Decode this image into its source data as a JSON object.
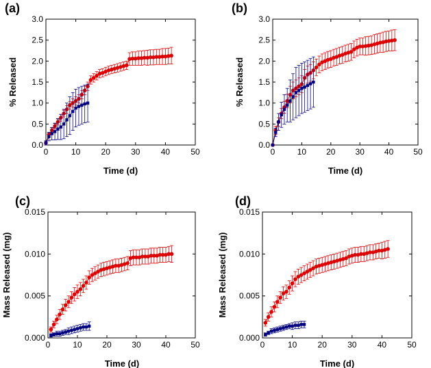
{
  "figure": {
    "series_colors": [
      "#dd0000",
      "#000080"
    ]
  },
  "chart_data": [
    {
      "panel": "(a)",
      "type": "scatter",
      "xlabel": "Time (d)",
      "ylabel": "% Released",
      "xlim": [
        0,
        50
      ],
      "ylim": [
        0,
        3.0
      ],
      "xticks": [
        0,
        10,
        20,
        30,
        40,
        50
      ],
      "yticks": [
        0,
        0.5,
        1.0,
        1.5,
        2.0,
        2.5,
        3.0
      ],
      "xtick_labels": [
        "0",
        "10",
        "20",
        "30",
        "40",
        "50"
      ],
      "ytick_labels": [
        "0.0",
        "0.5",
        "1.0",
        "1.5",
        "2.0",
        "2.5",
        "3.0"
      ],
      "series": [
        {
          "name": "red",
          "color": "#dd0000",
          "x": [
            0,
            1,
            2,
            3,
            4,
            5,
            6,
            7,
            8,
            9,
            10,
            11,
            12,
            13,
            14,
            15,
            16,
            17,
            18,
            19,
            20,
            21,
            22,
            23,
            24,
            25,
            26,
            27,
            28,
            29,
            30,
            31,
            32,
            33,
            34,
            35,
            36,
            37,
            38,
            39,
            40,
            41,
            42
          ],
          "y": [
            0.05,
            0.25,
            0.35,
            0.45,
            0.55,
            0.65,
            0.75,
            0.85,
            0.95,
            1.0,
            1.05,
            1.1,
            1.2,
            1.3,
            1.4,
            1.55,
            1.6,
            1.65,
            1.7,
            1.72,
            1.75,
            1.78,
            1.8,
            1.82,
            1.84,
            1.86,
            1.88,
            1.9,
            2.05,
            2.06,
            2.06,
            2.07,
            2.07,
            2.08,
            2.08,
            2.09,
            2.09,
            2.1,
            2.1,
            2.11,
            2.11,
            2.12,
            2.13
          ],
          "err": [
            0.05,
            0.05,
            0.06,
            0.06,
            0.07,
            0.08,
            0.08,
            0.09,
            0.09,
            0.1,
            0.1,
            0.1,
            0.1,
            0.1,
            0.1,
            0.1,
            0.1,
            0.1,
            0.1,
            0.1,
            0.1,
            0.1,
            0.1,
            0.1,
            0.1,
            0.1,
            0.1,
            0.1,
            0.15,
            0.16,
            0.16,
            0.17,
            0.17,
            0.17,
            0.18,
            0.18,
            0.18,
            0.18,
            0.18,
            0.19,
            0.19,
            0.19,
            0.2
          ]
        },
        {
          "name": "blue",
          "color": "#000080",
          "x": [
            0,
            1,
            2,
            3,
            4,
            5,
            6,
            7,
            8,
            9,
            10,
            11,
            12,
            13,
            14
          ],
          "y": [
            0.05,
            0.2,
            0.27,
            0.32,
            0.38,
            0.43,
            0.5,
            0.6,
            0.7,
            0.8,
            0.88,
            0.92,
            0.95,
            0.98,
            1.0
          ],
          "err": [
            0.05,
            0.1,
            0.15,
            0.2,
            0.25,
            0.3,
            0.35,
            0.4,
            0.45,
            0.45,
            0.45,
            0.45,
            0.45,
            0.45,
            0.45
          ]
        }
      ]
    },
    {
      "panel": "(b)",
      "type": "scatter",
      "xlabel": "Time (d)",
      "ylabel": "% Released",
      "xlim": [
        0,
        50
      ],
      "ylim": [
        0,
        3.0
      ],
      "xticks": [
        0,
        10,
        20,
        30,
        40,
        50
      ],
      "yticks": [
        0,
        0.5,
        1.0,
        1.5,
        2.0,
        2.5,
        3.0
      ],
      "xtick_labels": [
        "0",
        "10",
        "20",
        "30",
        "40",
        "50"
      ],
      "ytick_labels": [
        "0.0",
        "0.5",
        "1.0",
        "1.5",
        "2.0",
        "2.5",
        "3.0"
      ],
      "series": [
        {
          "name": "red",
          "color": "#dd0000",
          "x": [
            0,
            1,
            2,
            3,
            4,
            5,
            6,
            7,
            8,
            9,
            10,
            11,
            12,
            13,
            14,
            15,
            16,
            17,
            18,
            19,
            20,
            21,
            22,
            23,
            24,
            25,
            26,
            27,
            28,
            29,
            30,
            31,
            32,
            33,
            34,
            35,
            36,
            37,
            38,
            39,
            40,
            41,
            42
          ],
          "y": [
            0.0,
            0.35,
            0.55,
            0.75,
            0.9,
            1.05,
            1.2,
            1.3,
            1.35,
            1.4,
            1.45,
            1.6,
            1.68,
            1.72,
            1.78,
            1.85,
            1.92,
            1.97,
            2.0,
            2.03,
            2.05,
            2.08,
            2.1,
            2.13,
            2.15,
            2.18,
            2.2,
            2.22,
            2.28,
            2.32,
            2.35,
            2.35,
            2.36,
            2.37,
            2.38,
            2.4,
            2.42,
            2.44,
            2.45,
            2.47,
            2.48,
            2.49,
            2.5
          ],
          "err": [
            0.0,
            0.1,
            0.1,
            0.12,
            0.14,
            0.16,
            0.2,
            0.2,
            0.2,
            0.2,
            0.2,
            0.2,
            0.2,
            0.2,
            0.2,
            0.2,
            0.2,
            0.2,
            0.2,
            0.2,
            0.2,
            0.2,
            0.2,
            0.2,
            0.2,
            0.2,
            0.2,
            0.2,
            0.2,
            0.2,
            0.2,
            0.2,
            0.22,
            0.22,
            0.22,
            0.23,
            0.23,
            0.23,
            0.24,
            0.24,
            0.24,
            0.25,
            0.25
          ]
        },
        {
          "name": "blue",
          "color": "#000080",
          "x": [
            0,
            1,
            2,
            3,
            4,
            5,
            6,
            7,
            8,
            9,
            10,
            11,
            12,
            13,
            14
          ],
          "y": [
            0.0,
            0.3,
            0.55,
            0.72,
            0.85,
            0.95,
            1.05,
            1.15,
            1.25,
            1.3,
            1.35,
            1.38,
            1.42,
            1.46,
            1.5
          ],
          "err": [
            0.0,
            0.1,
            0.2,
            0.3,
            0.35,
            0.4,
            0.5,
            0.55,
            0.6,
            0.6,
            0.6,
            0.6,
            0.6,
            0.6,
            0.6
          ]
        }
      ]
    },
    {
      "panel": "(c)",
      "type": "scatter",
      "xlabel": "Time (d)",
      "ylabel": "Mass Released (mg)",
      "xlim": [
        0,
        50
      ],
      "ylim": [
        0,
        0.015
      ],
      "xticks": [
        0,
        10,
        20,
        30,
        40,
        50
      ],
      "yticks": [
        0,
        0.005,
        0.01,
        0.015
      ],
      "xtick_labels": [
        "0",
        "10",
        "20",
        "30",
        "40",
        "50"
      ],
      "ytick_labels": [
        "0.000",
        "0.005",
        "0.010",
        "0.015"
      ],
      "series": [
        {
          "name": "red",
          "color": "#dd0000",
          "x": [
            1,
            2,
            3,
            4,
            5,
            6,
            7,
            8,
            9,
            10,
            11,
            12,
            13,
            14,
            15,
            16,
            17,
            18,
            19,
            20,
            21,
            22,
            23,
            24,
            25,
            26,
            27,
            28,
            29,
            30,
            31,
            32,
            33,
            34,
            35,
            36,
            37,
            38,
            39,
            40,
            41,
            42
          ],
          "y": [
            0.001,
            0.0016,
            0.0022,
            0.0028,
            0.0034,
            0.0039,
            0.0043,
            0.0048,
            0.0052,
            0.0055,
            0.0058,
            0.0062,
            0.0066,
            0.0072,
            0.0075,
            0.0077,
            0.0079,
            0.0081,
            0.0082,
            0.0083,
            0.0084,
            0.0085,
            0.0086,
            0.0086,
            0.0087,
            0.0088,
            0.0089,
            0.0095,
            0.0096,
            0.0096,
            0.0096,
            0.0097,
            0.0097,
            0.0097,
            0.0098,
            0.0098,
            0.0098,
            0.0099,
            0.0099,
            0.0099,
            0.01,
            0.01
          ],
          "err": [
            0.0003,
            0.0004,
            0.0005,
            0.0006,
            0.0006,
            0.0007,
            0.0007,
            0.0007,
            0.0008,
            0.0008,
            0.0008,
            0.0008,
            0.0008,
            0.0008,
            0.0008,
            0.0008,
            0.0008,
            0.0008,
            0.0008,
            0.0008,
            0.0008,
            0.0008,
            0.0008,
            0.0008,
            0.0008,
            0.0008,
            0.0008,
            0.0009,
            0.0009,
            0.0009,
            0.0009,
            0.0009,
            0.0009,
            0.0009,
            0.0009,
            0.0009,
            0.0009,
            0.0009,
            0.0009,
            0.0009,
            0.0009,
            0.001
          ]
        },
        {
          "name": "blue",
          "color": "#000080",
          "x": [
            1,
            2,
            3,
            4,
            5,
            6,
            7,
            8,
            9,
            10,
            11,
            12,
            13,
            14
          ],
          "y": [
            0.0003,
            0.0004,
            0.0005,
            0.0005,
            0.0006,
            0.0007,
            0.0008,
            0.0009,
            0.001,
            0.0011,
            0.0012,
            0.0013,
            0.0013,
            0.0014
          ],
          "err": [
            0.0002,
            0.0002,
            0.0003,
            0.0003,
            0.0003,
            0.0003,
            0.0004,
            0.0004,
            0.0004,
            0.0004,
            0.0004,
            0.0004,
            0.0004,
            0.0005
          ]
        }
      ]
    },
    {
      "panel": "(d)",
      "type": "scatter",
      "xlabel": "Time (d)",
      "ylabel": "Mass Released (mg)",
      "xlim": [
        0,
        50
      ],
      "ylim": [
        0,
        0.015
      ],
      "xticks": [
        0,
        10,
        20,
        30,
        40,
        50
      ],
      "yticks": [
        0,
        0.005,
        0.01,
        0.015
      ],
      "xtick_labels": [
        "0",
        "10",
        "20",
        "30",
        "40",
        "50"
      ],
      "ytick_labels": [
        "0.000",
        "0.005",
        "0.010",
        "0.015"
      ],
      "series": [
        {
          "name": "red",
          "color": "#dd0000",
          "x": [
            1,
            2,
            3,
            4,
            5,
            6,
            7,
            8,
            9,
            10,
            11,
            12,
            13,
            14,
            15,
            16,
            17,
            18,
            19,
            20,
            21,
            22,
            23,
            24,
            25,
            26,
            27,
            28,
            29,
            30,
            31,
            32,
            33,
            34,
            35,
            36,
            37,
            38,
            39,
            40,
            41,
            42
          ],
          "y": [
            0.0018,
            0.0025,
            0.0031,
            0.0037,
            0.0043,
            0.0048,
            0.0053,
            0.0055,
            0.006,
            0.0065,
            0.007,
            0.0073,
            0.0075,
            0.0077,
            0.0079,
            0.0081,
            0.0083,
            0.0085,
            0.0086,
            0.0087,
            0.0088,
            0.0089,
            0.009,
            0.0091,
            0.0092,
            0.0093,
            0.0094,
            0.0095,
            0.0097,
            0.0098,
            0.0099,
            0.0099,
            0.01,
            0.01,
            0.0101,
            0.0102,
            0.0102,
            0.0103,
            0.0104,
            0.0104,
            0.0105,
            0.0106
          ],
          "err": [
            0.0004,
            0.0005,
            0.0006,
            0.0006,
            0.0007,
            0.0007,
            0.0008,
            0.0008,
            0.0008,
            0.0009,
            0.0009,
            0.0009,
            0.0009,
            0.0009,
            0.0009,
            0.0009,
            0.0009,
            0.0009,
            0.0009,
            0.0009,
            0.0009,
            0.0009,
            0.0009,
            0.0009,
            0.0009,
            0.0009,
            0.0009,
            0.0009,
            0.0009,
            0.0009,
            0.0009,
            0.0009,
            0.0009,
            0.0009,
            0.0009,
            0.0009,
            0.0009,
            0.0009,
            0.0009,
            0.001,
            0.001,
            0.001
          ]
        },
        {
          "name": "blue",
          "color": "#000080",
          "x": [
            1,
            2,
            3,
            4,
            5,
            6,
            7,
            8,
            9,
            10,
            11,
            12,
            13,
            14
          ],
          "y": [
            0.0004,
            0.0006,
            0.0008,
            0.0009,
            0.001,
            0.0011,
            0.0012,
            0.0013,
            0.0014,
            0.0014,
            0.0015,
            0.0015,
            0.0016,
            0.0016
          ],
          "err": [
            0.0002,
            0.0002,
            0.0003,
            0.0003,
            0.0003,
            0.0003,
            0.0003,
            0.0003,
            0.0003,
            0.0004,
            0.0004,
            0.0004,
            0.0004,
            0.0004
          ]
        }
      ]
    }
  ]
}
